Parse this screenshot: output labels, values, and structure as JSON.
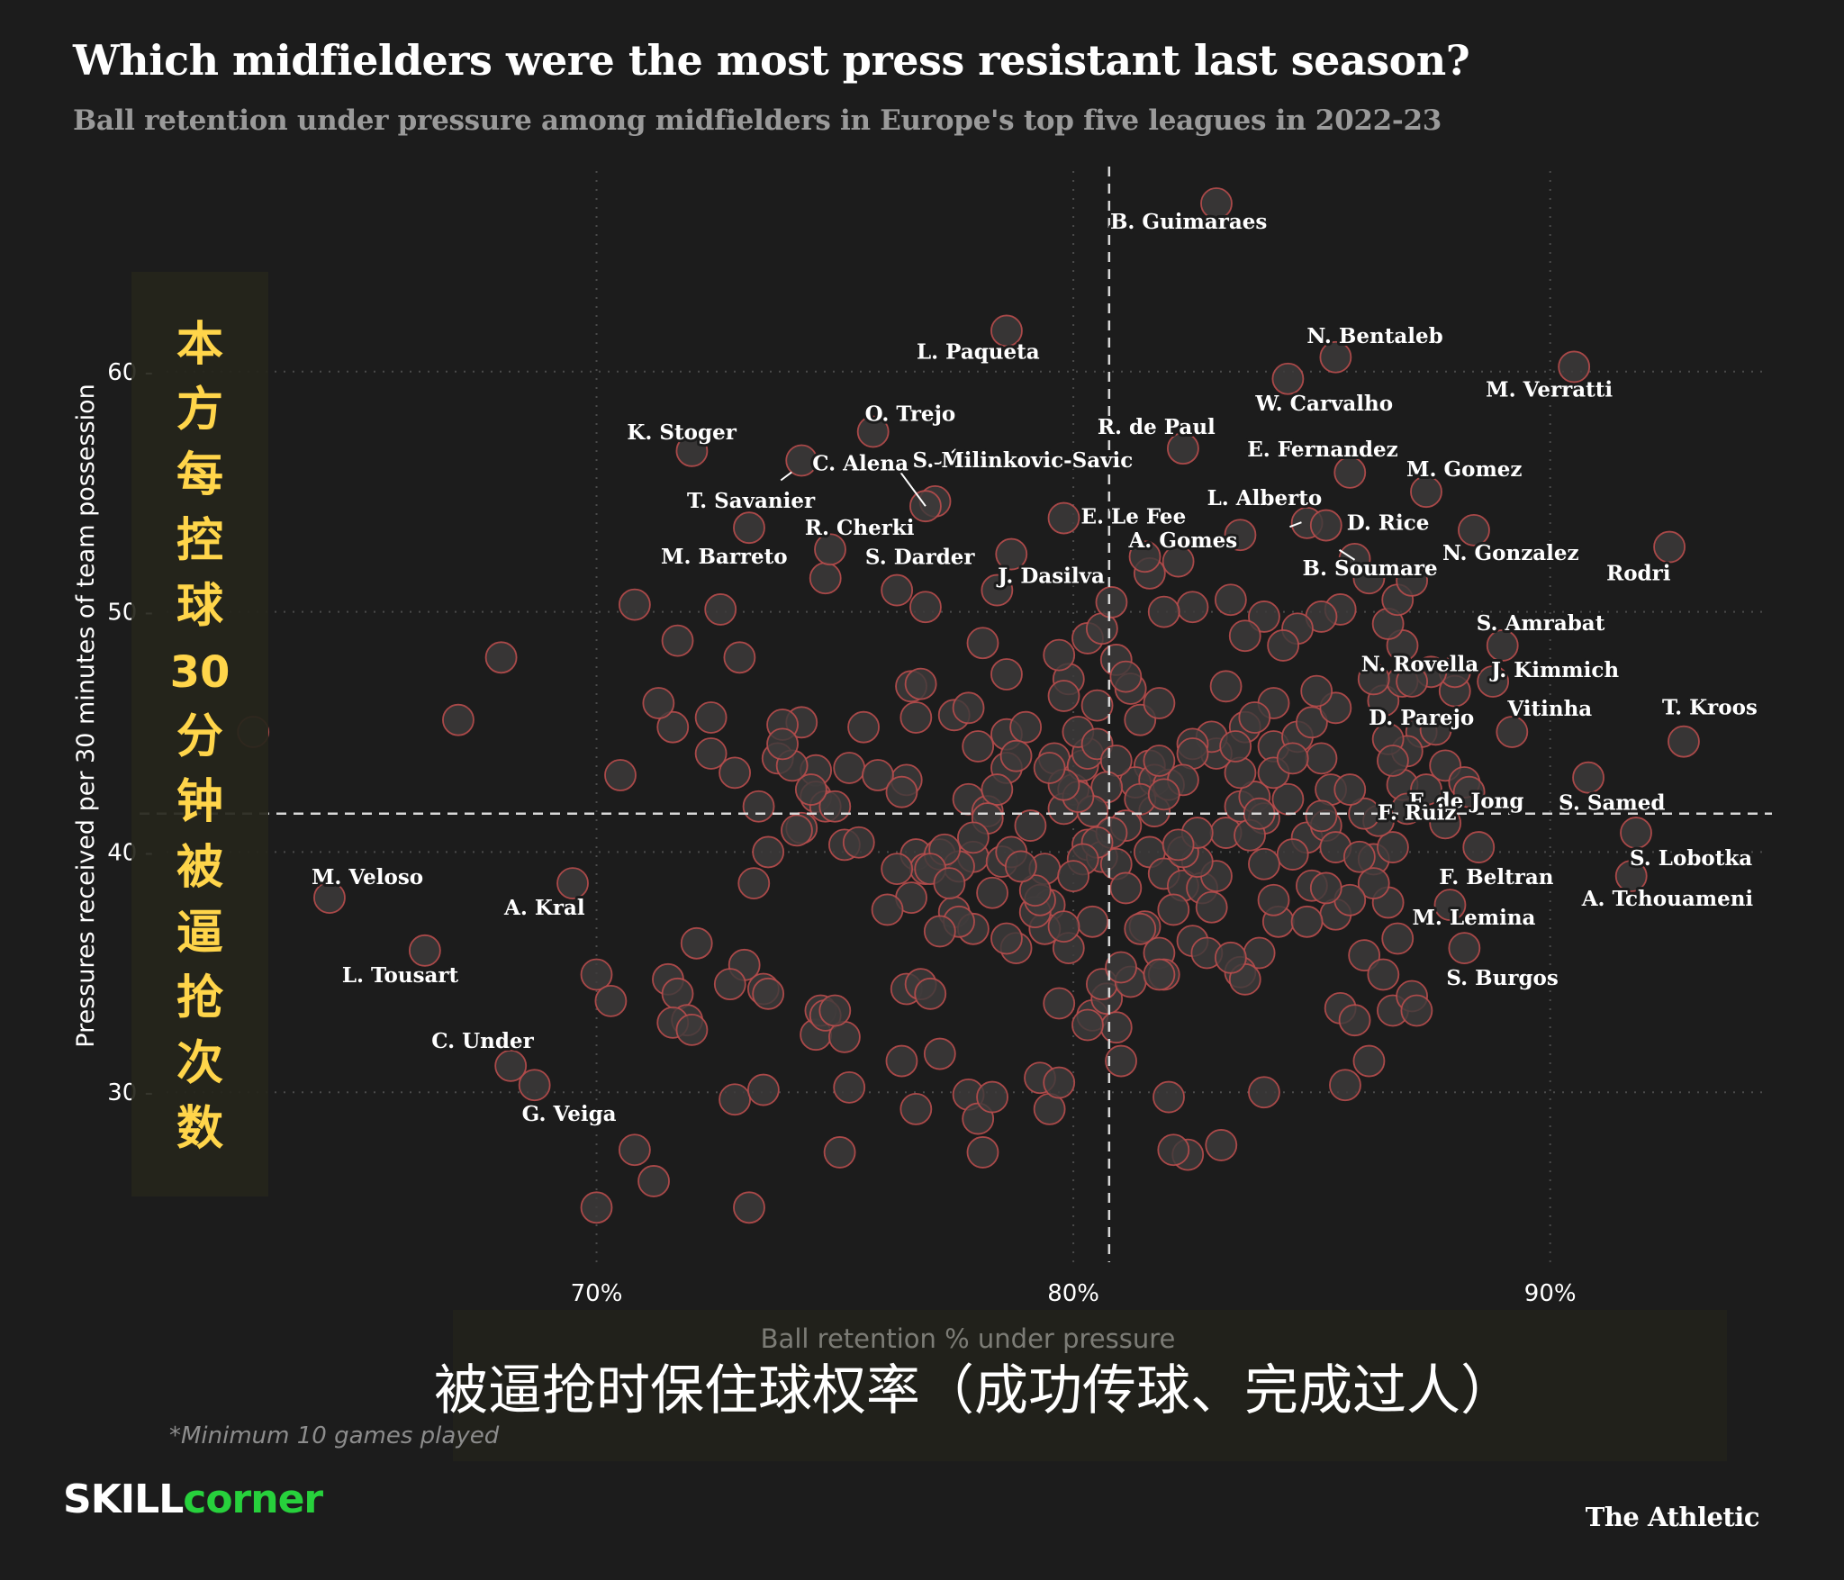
{
  "title": "Which midfielders were the most press resistant last season?",
  "subtitle": "Ball retention under pressure among midfielders in Europe's top five leagues in 2022-23",
  "footnote": "*Minimum 10 games played",
  "brand": {
    "part1": "SKILL",
    "part2": "corner"
  },
  "publisher": "The Athletic",
  "colors": {
    "background": "#1c1c1c",
    "point_fill": "#3d3b3b",
    "point_stroke": "#b84c4c",
    "overlay_text": "#ffd54a",
    "overlay_bg": "#25251b"
  },
  "chinese_overlay": {
    "y_label_chars": [
      "本",
      "方",
      "每",
      "控",
      "球",
      "30",
      "分",
      "钟",
      "被",
      "逼",
      "抢",
      "次",
      "数"
    ],
    "x_label": "被逼抢时保住球权率（成功传球、完成过人）"
  },
  "chart_data": {
    "type": "scatter",
    "xlabel": "Ball retention % under pressure",
    "ylabel": "Pressures received per 30 minutes of team possession",
    "xlim": [
      60.7,
      94.5
    ],
    "ylim": [
      23.0,
      67.6
    ],
    "x_ticks": [
      {
        "value": 70,
        "label": "70%"
      },
      {
        "value": 80,
        "label": "80%"
      },
      {
        "value": 90,
        "label": "90%"
      }
    ],
    "y_ticks": [
      {
        "value": 30,
        "label": "30"
      },
      {
        "value": 40,
        "label": "40"
      },
      {
        "value": 50,
        "label": "50"
      },
      {
        "value": 60,
        "label": "60"
      }
    ],
    "mean_lines": {
      "x": 80.75,
      "y": 41.6
    },
    "grid": "dotted",
    "labeled_points": [
      {
        "name": "B. Guimaraes",
        "x": 83.0,
        "y": 67.0
      },
      {
        "name": "L. Paqueta",
        "x": 78.6,
        "y": 61.7
      },
      {
        "name": "N. Bentaleb",
        "x": 85.5,
        "y": 60.6
      },
      {
        "name": "M. Verratti",
        "x": 90.5,
        "y": 60.2
      },
      {
        "name": "W. Carvalho",
        "x": 84.5,
        "y": 59.7
      },
      {
        "name": "O. Trejo",
        "x": 75.8,
        "y": 57.5
      },
      {
        "name": "R. de Paul",
        "x": 82.3,
        "y": 56.8
      },
      {
        "name": "K. Stoger",
        "x": 72.0,
        "y": 56.7
      },
      {
        "name": "C. Alena",
        "x": 74.3,
        "y": 56.3
      },
      {
        "name": "E. Fernandez",
        "x": 85.8,
        "y": 55.8
      },
      {
        "name": "M. Gomez",
        "x": 87.4,
        "y": 55.0
      },
      {
        "name": "S. Milinkovic-Savic",
        "x": 77.1,
        "y": 54.6
      },
      {
        "name": "R. Cherki",
        "x": 76.9,
        "y": 54.4
      },
      {
        "name": "E. Le Fee",
        "x": 79.8,
        "y": 53.9
      },
      {
        "name": "L. Alberto",
        "x": 84.9,
        "y": 53.7
      },
      {
        "name": "T. Savanier",
        "x": 73.2,
        "y": 53.5
      },
      {
        "name": "D. Rice",
        "x": 85.3,
        "y": 53.6
      },
      {
        "name": "N. Gonzalez",
        "x": 88.4,
        "y": 53.4
      },
      {
        "name": "A. Gomes",
        "x": 83.5,
        "y": 53.2
      },
      {
        "name": "M. Barreto",
        "x": 74.9,
        "y": 52.6
      },
      {
        "name": "J. Dasilva",
        "x": 78.7,
        "y": 52.4
      },
      {
        "name": "Rodri",
        "x": 92.5,
        "y": 52.7
      },
      {
        "name": "B. Soumare",
        "x": 85.9,
        "y": 52.2
      },
      {
        "name": "S. Darder",
        "x": 76.9,
        "y": 50.2
      },
      {
        "name": "S. Amrabat",
        "x": 89.0,
        "y": 48.6
      },
      {
        "name": "N. Rovella",
        "x": 86.3,
        "y": 47.2
      },
      {
        "name": "J. Kimmich",
        "x": 88.8,
        "y": 47.1
      },
      {
        "name": "D. Parejo",
        "x": 87.1,
        "y": 47.1
      },
      {
        "name": "Vitinha",
        "x": 89.2,
        "y": 45.0
      },
      {
        "name": "T. Kroos",
        "x": 92.8,
        "y": 44.6
      },
      {
        "name": "F. de Jong",
        "x": 88.3,
        "y": 42.5
      },
      {
        "name": "S. Samed",
        "x": 90.8,
        "y": 43.1
      },
      {
        "name": "F. Ruiz",
        "x": 87.0,
        "y": 41.8
      },
      {
        "name": "F. Beltran",
        "x": 88.5,
        "y": 40.2
      },
      {
        "name": "S. Lobotka",
        "x": 91.8,
        "y": 40.8
      },
      {
        "name": "A. Tchouameni",
        "x": 91.7,
        "y": 39.0
      },
      {
        "name": "M. Lemina",
        "x": 87.9,
        "y": 37.8
      },
      {
        "name": "S. Burgos",
        "x": 88.2,
        "y": 36.0
      },
      {
        "name": "M. Veloso",
        "x": 64.4,
        "y": 38.1
      },
      {
        "name": "A. Kral",
        "x": 69.5,
        "y": 38.7
      },
      {
        "name": "L. Tousart",
        "x": 66.4,
        "y": 35.9
      },
      {
        "name": "C. Under",
        "x": 68.2,
        "y": 31.1
      },
      {
        "name": "G. Veiga",
        "x": 68.7,
        "y": 30.3
      }
    ],
    "points": [
      [
        62.8,
        45.0
      ],
      [
        67.1,
        45.5
      ],
      [
        68.0,
        48.1
      ],
      [
        70.5,
        43.2
      ],
      [
        70.8,
        50.3
      ],
      [
        71.6,
        45.2
      ],
      [
        71.7,
        48.8
      ],
      [
        72.6,
        50.1
      ],
      [
        72.4,
        44.1
      ],
      [
        73.0,
        48.1
      ],
      [
        72.9,
        43.3
      ],
      [
        73.4,
        41.9
      ],
      [
        73.3,
        38.7
      ],
      [
        73.6,
        40.0
      ],
      [
        73.8,
        43.9
      ],
      [
        74.3,
        45.4
      ],
      [
        74.6,
        43.4
      ],
      [
        74.3,
        41.0
      ],
      [
        74.6,
        42.3
      ],
      [
        74.8,
        41.9
      ],
      [
        75.2,
        40.3
      ],
      [
        74.8,
        51.4
      ],
      [
        75.6,
        45.2
      ],
      [
        76.3,
        50.9
      ],
      [
        76.6,
        46.9
      ],
      [
        76.7,
        45.6
      ],
      [
        76.5,
        43.0
      ],
      [
        76.7,
        39.9
      ],
      [
        76.6,
        38.1
      ],
      [
        76.9,
        39.3
      ],
      [
        77.2,
        39.9
      ],
      [
        77.5,
        45.7
      ],
      [
        77.8,
        46.0
      ],
      [
        77.8,
        42.2
      ],
      [
        78.2,
        41.7
      ],
      [
        78.0,
        44.4
      ],
      [
        77.9,
        39.8
      ],
      [
        77.6,
        39.4
      ],
      [
        77.5,
        37.5
      ],
      [
        77.9,
        36.8
      ],
      [
        78.3,
        38.3
      ],
      [
        78.5,
        39.6
      ],
      [
        78.7,
        40.0
      ],
      [
        78.6,
        44.9
      ],
      [
        79.0,
        45.2
      ],
      [
        78.6,
        43.5
      ],
      [
        79.1,
        41.1
      ],
      [
        78.1,
        48.7
      ],
      [
        78.4,
        50.9
      ],
      [
        79.4,
        39.3
      ],
      [
        79.5,
        37.8
      ],
      [
        79.4,
        36.8
      ],
      [
        79.2,
        37.5
      ],
      [
        79.6,
        43.9
      ],
      [
        80.0,
        42.6
      ],
      [
        79.8,
        41.8
      ],
      [
        80.2,
        43.6
      ],
      [
        80.3,
        44.1
      ],
      [
        79.9,
        47.2
      ],
      [
        79.7,
        48.2
      ],
      [
        80.3,
        48.9
      ],
      [
        80.6,
        49.3
      ],
      [
        80.9,
        48.0
      ],
      [
        81.2,
        46.8
      ],
      [
        80.8,
        50.4
      ],
      [
        81.4,
        45.5
      ],
      [
        81.6,
        43.6
      ],
      [
        81.3,
        42.9
      ],
      [
        81.7,
        43.0
      ],
      [
        81.6,
        40.0
      ],
      [
        81.9,
        39.1
      ],
      [
        82.3,
        38.6
      ],
      [
        81.5,
        36.9
      ],
      [
        81.8,
        35.8
      ],
      [
        81.9,
        34.9
      ],
      [
        82.1,
        37.6
      ],
      [
        82.7,
        38.5
      ],
      [
        83.0,
        39.0
      ],
      [
        83.2,
        40.8
      ],
      [
        83.5,
        41.9
      ],
      [
        83.8,
        42.3
      ],
      [
        84.0,
        41.4
      ],
      [
        83.5,
        43.3
      ],
      [
        83.0,
        44.1
      ],
      [
        82.9,
        44.8
      ],
      [
        83.6,
        45.2
      ],
      [
        84.2,
        44.4
      ],
      [
        84.7,
        44.8
      ],
      [
        85.0,
        45.4
      ],
      [
        85.2,
        43.9
      ],
      [
        85.4,
        42.6
      ],
      [
        84.9,
        40.6
      ],
      [
        84.6,
        39.9
      ],
      [
        85.0,
        38.6
      ],
      [
        84.3,
        37.1
      ],
      [
        83.9,
        35.8
      ],
      [
        83.5,
        35.0
      ],
      [
        83.6,
        34.7
      ],
      [
        82.0,
        29.8
      ],
      [
        82.4,
        27.4
      ],
      [
        82.1,
        27.6
      ],
      [
        83.1,
        27.8
      ],
      [
        84.0,
        30.0
      ],
      [
        85.7,
        30.3
      ],
      [
        85.6,
        33.5
      ],
      [
        85.9,
        33.0
      ],
      [
        86.2,
        31.3
      ],
      [
        86.1,
        35.7
      ],
      [
        86.5,
        34.9
      ],
      [
        86.7,
        33.4
      ],
      [
        86.8,
        36.4
      ],
      [
        87.1,
        34.0
      ],
      [
        87.2,
        33.4
      ],
      [
        86.6,
        37.9
      ],
      [
        86.3,
        39.7
      ],
      [
        86.7,
        40.2
      ],
      [
        86.4,
        41.3
      ],
      [
        86.9,
        42.8
      ],
      [
        87.4,
        42.6
      ],
      [
        87.8,
        41.2
      ],
      [
        87.8,
        43.6
      ],
      [
        88.2,
        42.9
      ],
      [
        87.3,
        45.0
      ],
      [
        87.0,
        44.2
      ],
      [
        86.6,
        44.7
      ],
      [
        87.6,
        45.1
      ],
      [
        88.0,
        46.7
      ],
      [
        88.0,
        47.5
      ],
      [
        87.5,
        47.5
      ],
      [
        86.9,
        48.6
      ],
      [
        86.6,
        49.5
      ],
      [
        86.8,
        50.5
      ],
      [
        87.1,
        51.3
      ],
      [
        86.2,
        51.4
      ],
      [
        85.6,
        50.1
      ],
      [
        85.2,
        49.8
      ],
      [
        84.7,
        49.3
      ],
      [
        84.4,
        48.6
      ],
      [
        84.0,
        49.8
      ],
      [
        83.6,
        49.0
      ],
      [
        83.3,
        50.5
      ],
      [
        82.5,
        50.2
      ],
      [
        81.9,
        50.0
      ],
      [
        81.6,
        51.6
      ],
      [
        82.2,
        52.1
      ],
      [
        81.5,
        52.3
      ],
      [
        79.8,
        46.5
      ],
      [
        80.1,
        45.0
      ],
      [
        80.5,
        44.5
      ],
      [
        80.9,
        43.8
      ],
      [
        80.7,
        42.7
      ],
      [
        80.4,
        41.7
      ],
      [
        80.3,
        40.3
      ],
      [
        80.6,
        39.8
      ],
      [
        80.9,
        39.5
      ],
      [
        81.1,
        38.5
      ],
      [
        80.4,
        37.1
      ],
      [
        79.9,
        36.0
      ],
      [
        79.8,
        36.9
      ],
      [
        79.3,
        38.0
      ],
      [
        79.2,
        38.4
      ],
      [
        78.9,
        39.4
      ],
      [
        78.8,
        36.0
      ],
      [
        78.6,
        36.4
      ],
      [
        79.7,
        33.7
      ],
      [
        80.4,
        33.2
      ],
      [
        80.7,
        33.9
      ],
      [
        80.6,
        34.5
      ],
      [
        80.9,
        32.7
      ],
      [
        81.2,
        34.6
      ],
      [
        81.4,
        36.8
      ],
      [
        82.5,
        36.3
      ],
      [
        82.9,
        37.7
      ],
      [
        82.6,
        39.6
      ],
      [
        82.3,
        40.0
      ],
      [
        82.6,
        40.8
      ],
      [
        82.2,
        40.3
      ],
      [
        81.7,
        41.7
      ],
      [
        82.0,
        42.8
      ],
      [
        82.5,
        44.5
      ],
      [
        81.8,
        43.8
      ],
      [
        81.4,
        42.2
      ],
      [
        81.1,
        41.1
      ],
      [
        80.8,
        40.8
      ],
      [
        80.5,
        40.4
      ],
      [
        80.2,
        39.7
      ],
      [
        80.0,
        39.0
      ],
      [
        80.1,
        42.3
      ],
      [
        79.8,
        42.8
      ],
      [
        79.5,
        43.5
      ],
      [
        78.8,
        44.0
      ],
      [
        78.4,
        42.6
      ],
      [
        78.2,
        41.4
      ],
      [
        77.9,
        40.6
      ],
      [
        77.3,
        40.1
      ],
      [
        77.0,
        39.3
      ],
      [
        77.4,
        38.7
      ],
      [
        77.6,
        37.1
      ],
      [
        77.2,
        36.7
      ],
      [
        76.5,
        34.3
      ],
      [
        76.8,
        34.5
      ],
      [
        77.0,
        34.1
      ],
      [
        76.1,
        37.6
      ],
      [
        76.3,
        39.3
      ],
      [
        75.5,
        40.4
      ],
      [
        75.3,
        43.5
      ],
      [
        75.0,
        41.9
      ],
      [
        74.5,
        42.6
      ],
      [
        74.2,
        40.9
      ],
      [
        73.1,
        35.3
      ],
      [
        73.5,
        34.3
      ],
      [
        73.6,
        34.1
      ],
      [
        72.8,
        34.5
      ],
      [
        72.1,
        36.2
      ],
      [
        71.5,
        34.7
      ],
      [
        71.7,
        34.1
      ],
      [
        71.9,
        33.0
      ],
      [
        71.6,
        32.9
      ],
      [
        72.0,
        32.6
      ],
      [
        72.9,
        29.7
      ],
      [
        73.5,
        30.1
      ],
      [
        73.2,
        25.2
      ],
      [
        70.8,
        27.6
      ],
      [
        71.2,
        26.3
      ],
      [
        70.0,
        25.2
      ],
      [
        70.0,
        34.9
      ],
      [
        70.3,
        33.8
      ],
      [
        74.6,
        32.4
      ],
      [
        74.7,
        33.4
      ],
      [
        74.8,
        33.2
      ],
      [
        75.2,
        32.3
      ],
      [
        75.0,
        33.4
      ],
      [
        75.3,
        30.2
      ],
      [
        75.1,
        27.5
      ],
      [
        76.4,
        31.3
      ],
      [
        77.2,
        31.6
      ],
      [
        76.7,
        29.3
      ],
      [
        77.8,
        29.9
      ],
      [
        78.0,
        28.9
      ],
      [
        78.3,
        29.8
      ],
      [
        78.1,
        27.5
      ],
      [
        79.5,
        29.3
      ],
      [
        79.3,
        30.6
      ],
      [
        80.3,
        32.8
      ],
      [
        81.0,
        31.3
      ],
      [
        79.7,
        30.4
      ],
      [
        81.0,
        35.2
      ],
      [
        81.8,
        34.9
      ],
      [
        82.8,
        35.8
      ],
      [
        83.3,
        35.6
      ],
      [
        84.2,
        38.0
      ],
      [
        85.5,
        37.4
      ],
      [
        84.0,
        39.5
      ],
      [
        83.7,
        40.7
      ],
      [
        83.9,
        41.6
      ],
      [
        84.5,
        42.2
      ],
      [
        84.2,
        43.3
      ],
      [
        84.6,
        43.9
      ],
      [
        83.4,
        44.4
      ],
      [
        82.5,
        44.1
      ],
      [
        82.3,
        43.0
      ],
      [
        81.9,
        42.4
      ],
      [
        85.3,
        41.1
      ],
      [
        85.5,
        40.2
      ],
      [
        86.0,
        39.8
      ],
      [
        86.3,
        38.7
      ],
      [
        85.8,
        38.0
      ],
      [
        85.3,
        38.5
      ],
      [
        84.9,
        37.1
      ],
      [
        86.1,
        41.6
      ],
      [
        85.8,
        42.6
      ],
      [
        85.2,
        41.5
      ],
      [
        86.7,
        43.8
      ],
      [
        86.5,
        46.3
      ],
      [
        86.9,
        47.1
      ],
      [
        85.5,
        46.0
      ],
      [
        85.1,
        46.7
      ],
      [
        84.2,
        46.2
      ],
      [
        83.8,
        45.6
      ],
      [
        83.2,
        46.9
      ],
      [
        81.8,
        46.2
      ],
      [
        81.1,
        47.3
      ],
      [
        80.5,
        46.1
      ],
      [
        78.6,
        47.4
      ],
      [
        76.8,
        47.0
      ],
      [
        73.9,
        45.3
      ],
      [
        72.4,
        45.6
      ],
      [
        74.1,
        43.6
      ],
      [
        75.9,
        43.2
      ],
      [
        76.4,
        42.5
      ],
      [
        73.9,
        44.5
      ],
      [
        71.3,
        46.2
      ]
    ]
  }
}
